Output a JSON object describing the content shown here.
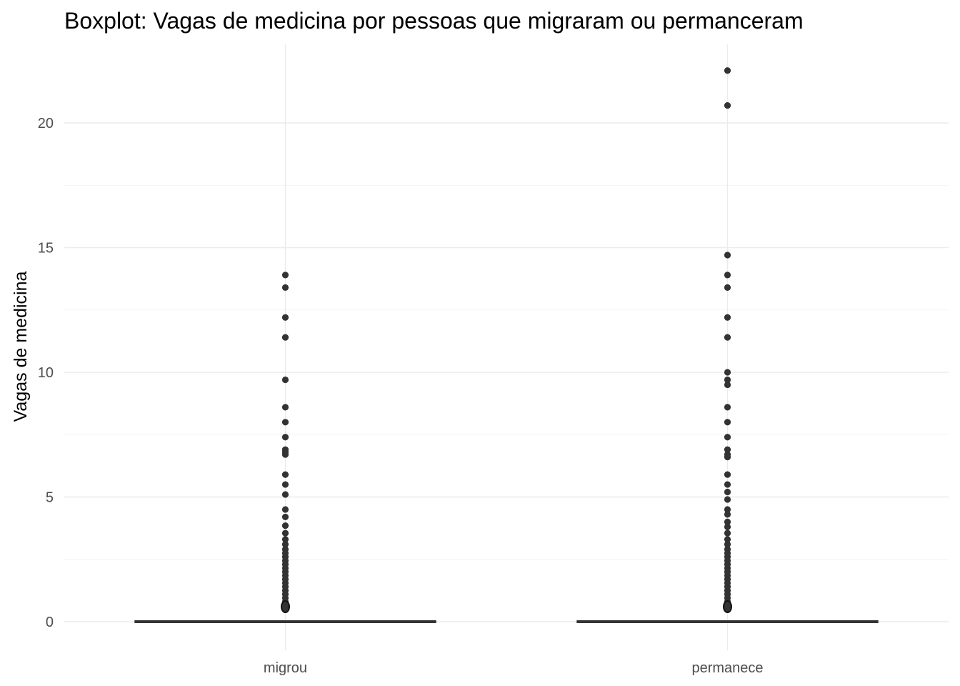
{
  "chart_data": {
    "type": "boxplot",
    "title": "Boxplot: Vagas de medicina por pessoas que migraram ou permanceram",
    "xlabel": "",
    "ylabel": "Vagas de medicina",
    "categories": [
      "migrou",
      "permanece"
    ],
    "ylim": [
      -1.2,
      22.5
    ],
    "yticks": [
      0,
      5,
      10,
      15,
      20
    ],
    "grid": true,
    "legend": "none",
    "colors": {
      "points": "#333333",
      "box": "#333333",
      "grid": "#ebebeb",
      "background": "#ffffff"
    },
    "boxes": [
      {
        "category": "migrou",
        "min": 0,
        "q1": 0,
        "median": 0,
        "q3": 0,
        "max": 0,
        "outliers": [
          0.5,
          0.55,
          0.6,
          0.65,
          0.7,
          0.8,
          0.95,
          1.1,
          1.25,
          1.4,
          1.55,
          1.7,
          1.85,
          2.0,
          2.15,
          2.3,
          2.45,
          2.6,
          2.75,
          2.9,
          3.1,
          3.3,
          3.55,
          3.85,
          4.2,
          4.5,
          5.1,
          5.5,
          5.9,
          6.7,
          6.8,
          6.9,
          7.4,
          8.0,
          8.6,
          9.7,
          11.4,
          12.2,
          13.4,
          13.9
        ]
      },
      {
        "category": "permanece",
        "min": 0,
        "q1": 0,
        "median": 0,
        "q3": 0,
        "max": 0,
        "outliers": [
          0.5,
          0.55,
          0.6,
          0.65,
          0.7,
          0.8,
          0.95,
          1.1,
          1.25,
          1.4,
          1.55,
          1.7,
          1.85,
          2.0,
          2.15,
          2.3,
          2.45,
          2.6,
          2.75,
          2.9,
          3.1,
          3.3,
          3.55,
          3.8,
          4.0,
          4.3,
          4.5,
          4.9,
          5.2,
          5.5,
          5.9,
          6.6,
          6.7,
          6.9,
          7.4,
          8.0,
          8.6,
          9.5,
          9.7,
          10.0,
          11.4,
          12.2,
          13.4,
          13.9,
          14.7,
          20.7,
          22.1
        ]
      }
    ]
  }
}
